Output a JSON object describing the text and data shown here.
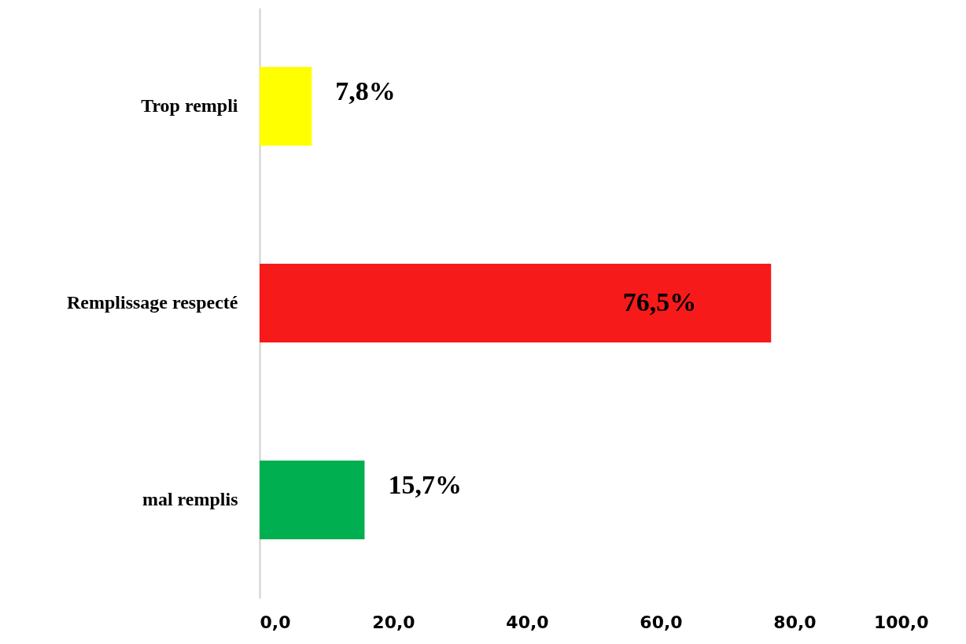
{
  "chart_data": {
    "type": "bar",
    "orientation": "horizontal",
    "categories": [
      "Trop rempli",
      "Remplissage respecté",
      "mal remplis"
    ],
    "values": [
      7.8,
      76.5,
      15.7
    ],
    "colors": [
      "#ffff00",
      "#f71a1a",
      "#00b050"
    ],
    "value_labels": [
      "7,8%",
      "76,5%",
      "15,7%"
    ],
    "xlim": [
      0,
      100
    ],
    "xticks": [
      {
        "value": 0,
        "label": "0,0"
      },
      {
        "value": 20,
        "label": "20,0"
      },
      {
        "value": 40,
        "label": "40,0"
      },
      {
        "value": 60,
        "label": "60,0"
      },
      {
        "value": 80,
        "label": "80,0"
      },
      {
        "value": 100,
        "label": "100,0"
      }
    ],
    "grid": false
  }
}
